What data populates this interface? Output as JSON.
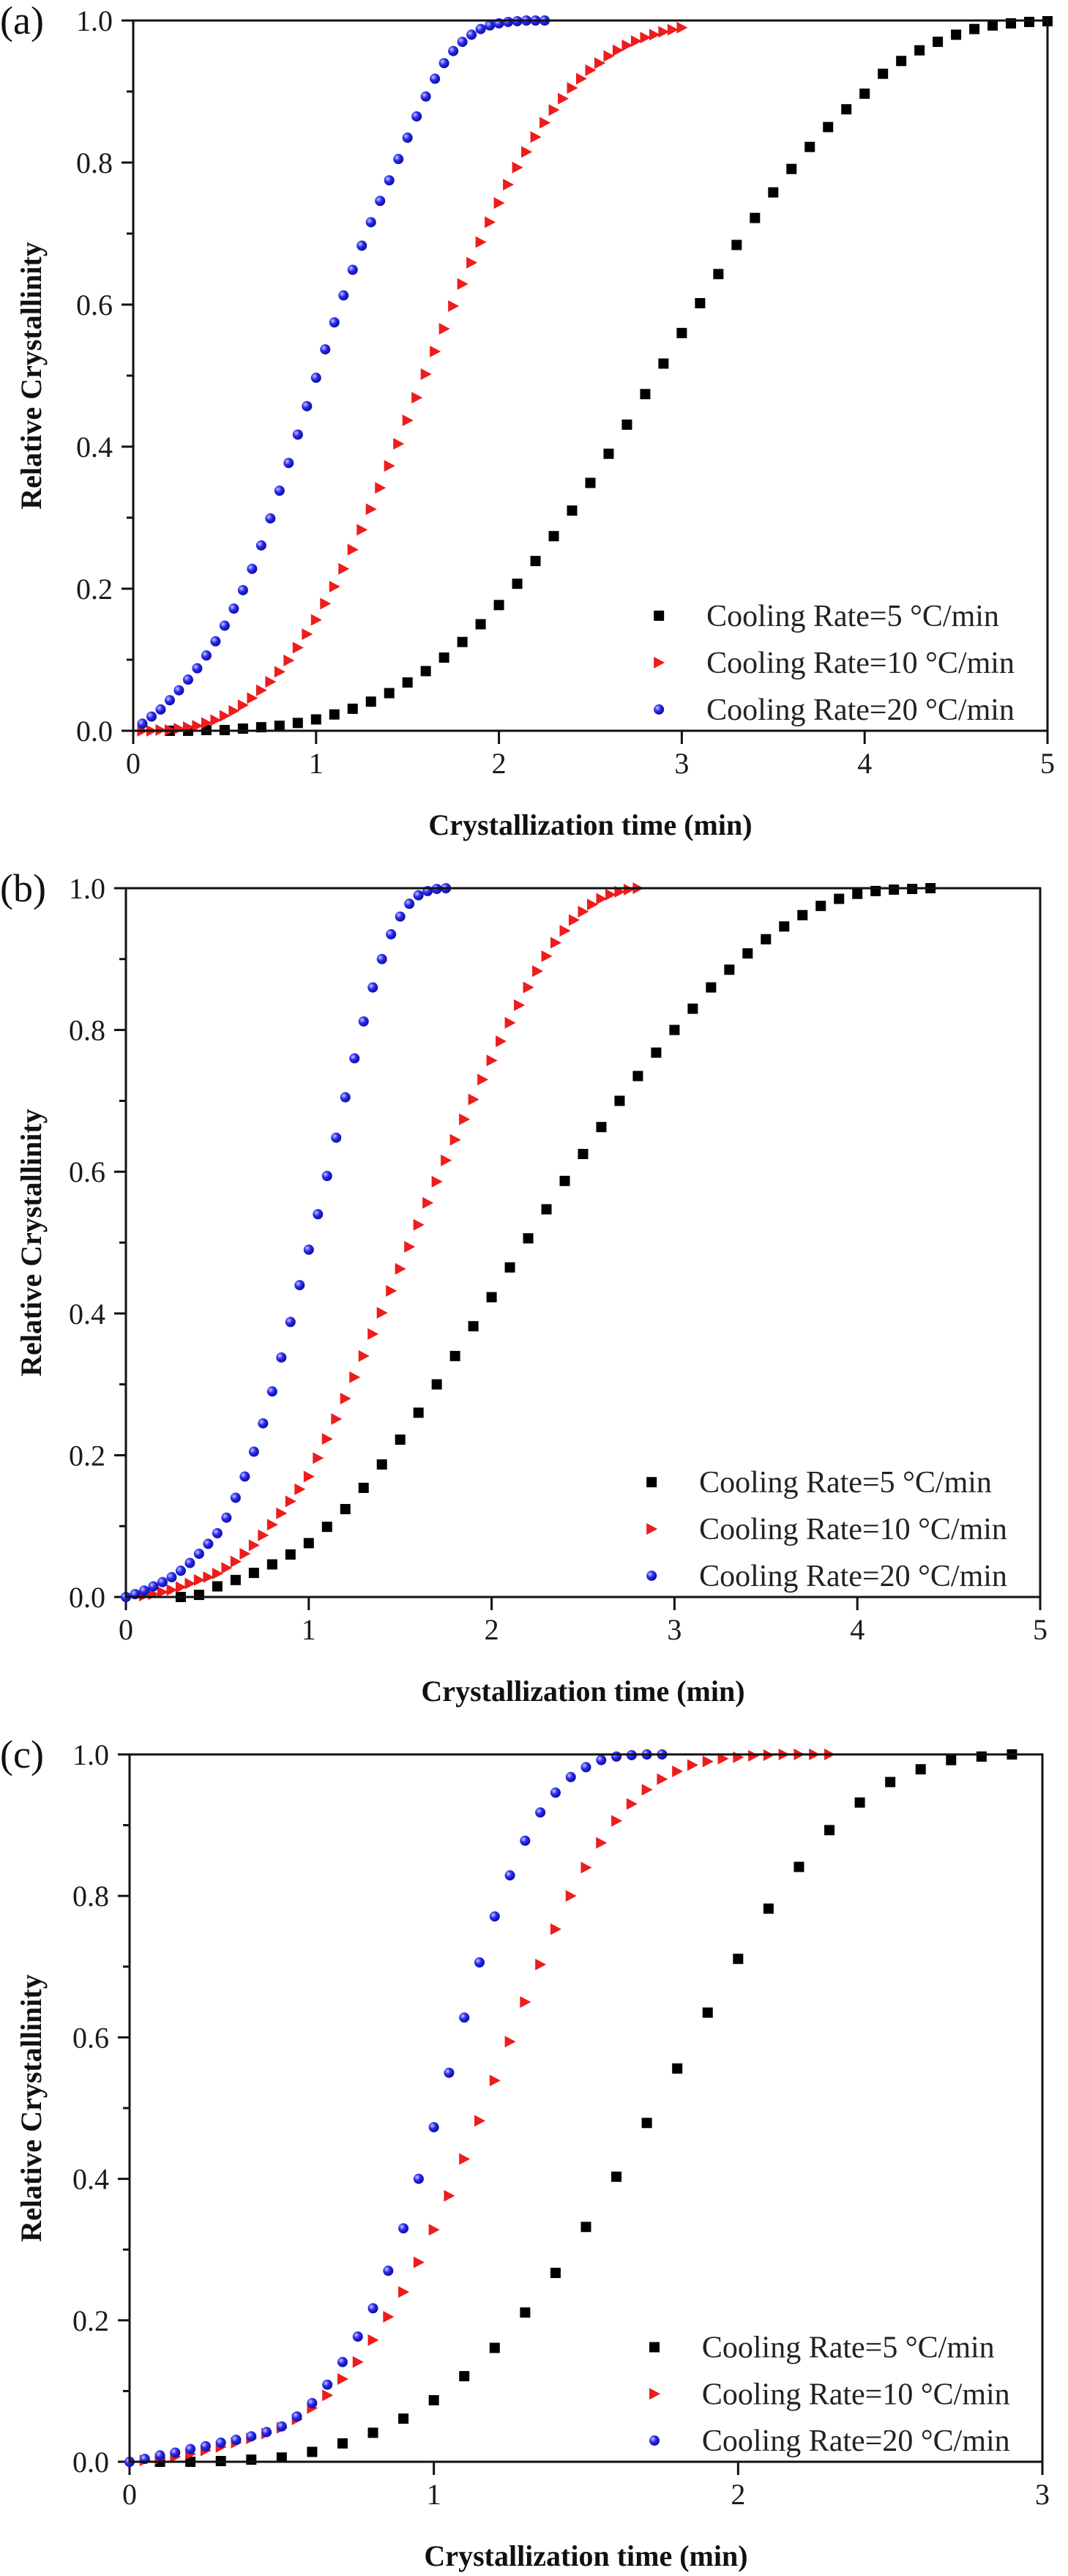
{
  "chart_data": [
    {
      "panel_label": "(a)",
      "type": "scatter",
      "xlabel": "Crystallization time (min)",
      "ylabel": "Relative Crystallinity",
      "xlim": [
        0,
        5
      ],
      "ylim": [
        0,
        1
      ],
      "xticks": [
        "0",
        "1",
        "2",
        "3",
        "4",
        "5"
      ],
      "yticks": [
        "0.0",
        "0.2",
        "0.4",
        "0.6",
        "0.8",
        "1.0"
      ],
      "grid": false,
      "legend_position": "bottom-right",
      "series": [
        {
          "name": "Cooling Rate=5 °C/min",
          "marker": "square",
          "color": "#000000",
          "x": [
            0.2,
            0.3,
            0.4,
            0.5,
            0.6,
            0.7,
            0.8,
            0.9,
            1.0,
            1.1,
            1.2,
            1.3,
            1.4,
            1.5,
            1.6,
            1.7,
            1.8,
            1.9,
            2.0,
            2.1,
            2.2,
            2.3,
            2.4,
            2.5,
            2.6,
            2.7,
            2.8,
            2.9,
            3.0,
            3.1,
            3.2,
            3.3,
            3.4,
            3.5,
            3.6,
            3.7,
            3.8,
            3.9,
            4.0,
            4.1,
            4.2,
            4.3,
            4.4,
            4.5,
            4.6,
            4.7,
            4.8,
            4.9,
            5.0
          ],
          "y": [
            0,
            0,
            0.001,
            0.001,
            0.003,
            0.005,
            0.007,
            0.011,
            0.016,
            0.023,
            0.031,
            0.041,
            0.053,
            0.068,
            0.084,
            0.103,
            0.125,
            0.15,
            0.177,
            0.207,
            0.239,
            0.274,
            0.31,
            0.349,
            0.39,
            0.431,
            0.474,
            0.517,
            0.56,
            0.602,
            0.643,
            0.684,
            0.722,
            0.758,
            0.791,
            0.822,
            0.85,
            0.875,
            0.897,
            0.925,
            0.943,
            0.958,
            0.97,
            0.98,
            0.988,
            0.993,
            0.996,
            0.998,
            0.999
          ]
        },
        {
          "name": "Cooling Rate=10 °C/min",
          "marker": "triangle-right",
          "color": "#ee1c1c",
          "x": [
            0.05,
            0.1,
            0.15,
            0.2,
            0.25,
            0.3,
            0.35,
            0.4,
            0.45,
            0.5,
            0.55,
            0.6,
            0.65,
            0.7,
            0.75,
            0.8,
            0.85,
            0.9,
            0.95,
            1.0,
            1.05,
            1.1,
            1.15,
            1.2,
            1.25,
            1.3,
            1.35,
            1.4,
            1.45,
            1.5,
            1.55,
            1.6,
            1.65,
            1.7,
            1.75,
            1.8,
            1.85,
            1.9,
            1.95,
            2.0,
            2.05,
            2.1,
            2.15,
            2.2,
            2.25,
            2.3,
            2.35,
            2.4,
            2.45,
            2.5,
            2.55,
            2.6,
            2.65,
            2.7,
            2.75,
            2.8,
            2.85,
            2.9,
            2.95,
            3.0
          ],
          "y": [
            0,
            0,
            0.001,
            0.001,
            0.003,
            0.005,
            0.007,
            0.011,
            0.015,
            0.021,
            0.028,
            0.036,
            0.046,
            0.057,
            0.069,
            0.083,
            0.099,
            0.117,
            0.136,
            0.156,
            0.179,
            0.203,
            0.228,
            0.255,
            0.283,
            0.312,
            0.342,
            0.373,
            0.404,
            0.437,
            0.469,
            0.502,
            0.534,
            0.566,
            0.598,
            0.629,
            0.659,
            0.688,
            0.716,
            0.743,
            0.769,
            0.793,
            0.815,
            0.836,
            0.856,
            0.874,
            0.89,
            0.905,
            0.918,
            0.93,
            0.94,
            0.95,
            0.958,
            0.965,
            0.971,
            0.976,
            0.98,
            0.984,
            0.987,
            0.99
          ]
        },
        {
          "name": "Cooling Rate=20 °C/min",
          "marker": "circle",
          "color": "#1a1aee",
          "x": [
            0.05,
            0.1,
            0.15,
            0.2,
            0.25,
            0.3,
            0.35,
            0.4,
            0.45,
            0.5,
            0.55,
            0.6,
            0.65,
            0.7,
            0.75,
            0.8,
            0.85,
            0.9,
            0.95,
            1.0,
            1.05,
            1.1,
            1.15,
            1.2,
            1.25,
            1.3,
            1.35,
            1.4,
            1.45,
            1.5,
            1.55,
            1.6,
            1.65,
            1.7,
            1.75,
            1.8,
            1.85,
            1.9,
            1.95,
            2.0,
            2.05,
            2.1,
            2.15,
            2.2,
            2.25
          ],
          "y": [
            0.01,
            0.02,
            0.03,
            0.043,
            0.057,
            0.072,
            0.088,
            0.106,
            0.126,
            0.148,
            0.172,
            0.198,
            0.228,
            0.261,
            0.299,
            0.338,
            0.377,
            0.417,
            0.457,
            0.497,
            0.537,
            0.575,
            0.613,
            0.649,
            0.683,
            0.716,
            0.746,
            0.775,
            0.805,
            0.835,
            0.865,
            0.893,
            0.918,
            0.94,
            0.957,
            0.97,
            0.98,
            0.988,
            0.993,
            0.996,
            0.998,
            0.999,
            1.0,
            1.0,
            1.0
          ]
        }
      ]
    },
    {
      "panel_label": "(b)",
      "type": "scatter",
      "xlabel": "Crystallization time (min)",
      "ylabel": "Relative Crystallinity",
      "xlim": [
        0,
        5
      ],
      "ylim": [
        0,
        1
      ],
      "xticks": [
        "0",
        "1",
        "2",
        "3",
        "4",
        "5"
      ],
      "yticks": [
        "0.0",
        "0.2",
        "0.4",
        "0.6",
        "0.8",
        "1.0"
      ],
      "grid": false,
      "legend_position": "bottom-right",
      "series": [
        {
          "name": "Cooling Rate=5 °C/min",
          "marker": "square",
          "color": "#000000",
          "x": [
            0.3,
            0.4,
            0.5,
            0.6,
            0.7,
            0.8,
            0.9,
            1.0,
            1.1,
            1.2,
            1.3,
            1.4,
            1.5,
            1.6,
            1.7,
            1.8,
            1.9,
            2.0,
            2.1,
            2.2,
            2.3,
            2.4,
            2.5,
            2.6,
            2.7,
            2.8,
            2.9,
            3.0,
            3.1,
            3.2,
            3.3,
            3.4,
            3.5,
            3.6,
            3.7,
            3.8,
            3.9,
            4.0,
            4.1,
            4.2,
            4.3,
            4.4
          ],
          "y": [
            0,
            0.003,
            0.015,
            0.024,
            0.034,
            0.046,
            0.06,
            0.076,
            0.099,
            0.124,
            0.154,
            0.187,
            0.222,
            0.26,
            0.3,
            0.34,
            0.382,
            0.423,
            0.465,
            0.506,
            0.547,
            0.587,
            0.625,
            0.663,
            0.7,
            0.735,
            0.768,
            0.8,
            0.83,
            0.86,
            0.885,
            0.908,
            0.928,
            0.946,
            0.962,
            0.975,
            0.985,
            0.992,
            0.996,
            0.998,
            0.999,
            1.0
          ]
        },
        {
          "name": "Cooling Rate=10 °C/min",
          "marker": "triangle-right",
          "color": "#ee1c1c",
          "x": [
            0.1,
            0.15,
            0.2,
            0.25,
            0.3,
            0.35,
            0.4,
            0.45,
            0.5,
            0.55,
            0.6,
            0.65,
            0.7,
            0.75,
            0.8,
            0.85,
            0.9,
            0.95,
            1.0,
            1.05,
            1.1,
            1.15,
            1.2,
            1.25,
            1.3,
            1.35,
            1.4,
            1.45,
            1.5,
            1.55,
            1.6,
            1.65,
            1.7,
            1.75,
            1.8,
            1.85,
            1.9,
            1.95,
            2.0,
            2.05,
            2.1,
            2.15,
            2.2,
            2.25,
            2.3,
            2.35,
            2.4,
            2.45,
            2.5,
            2.55,
            2.6,
            2.65,
            2.7,
            2.75,
            2.8
          ],
          "y": [
            0.002,
            0.004,
            0.007,
            0.01,
            0.014,
            0.019,
            0.024,
            0.028,
            0.033,
            0.041,
            0.05,
            0.061,
            0.073,
            0.087,
            0.102,
            0.118,
            0.135,
            0.152,
            0.17,
            0.196,
            0.223,
            0.251,
            0.28,
            0.31,
            0.34,
            0.371,
            0.401,
            0.432,
            0.463,
            0.494,
            0.525,
            0.556,
            0.586,
            0.616,
            0.645,
            0.674,
            0.702,
            0.73,
            0.757,
            0.784,
            0.81,
            0.835,
            0.86,
            0.883,
            0.904,
            0.923,
            0.94,
            0.955,
            0.967,
            0.977,
            0.985,
            0.991,
            0.995,
            0.998,
            1.0
          ]
        },
        {
          "name": "Cooling Rate=20 °C/min",
          "marker": "circle",
          "color": "#1a1aee",
          "x": [
            0,
            0.05,
            0.1,
            0.15,
            0.2,
            0.25,
            0.3,
            0.35,
            0.4,
            0.45,
            0.5,
            0.55,
            0.6,
            0.65,
            0.7,
            0.75,
            0.8,
            0.85,
            0.9,
            0.95,
            1.0,
            1.05,
            1.1,
            1.15,
            1.2,
            1.25,
            1.3,
            1.35,
            1.4,
            1.45,
            1.5,
            1.55,
            1.6,
            1.65,
            1.7,
            1.75
          ],
          "y": [
            0,
            0.004,
            0.009,
            0.015,
            0.021,
            0.028,
            0.037,
            0.048,
            0.061,
            0.075,
            0.09,
            0.112,
            0.14,
            0.17,
            0.205,
            0.245,
            0.29,
            0.338,
            0.388,
            0.44,
            0.49,
            0.54,
            0.594,
            0.648,
            0.705,
            0.76,
            0.812,
            0.86,
            0.9,
            0.935,
            0.96,
            0.978,
            0.99,
            0.996,
            0.999,
            1.0
          ]
        }
      ]
    },
    {
      "panel_label": "(c)",
      "type": "scatter",
      "xlabel": "Crystallization time (min)",
      "ylabel": "Relative Crystallinity",
      "xlim": [
        0,
        3
      ],
      "ylim": [
        0,
        1
      ],
      "xticks": [
        "0",
        "1",
        "2",
        "3"
      ],
      "yticks": [
        "0.0",
        "0.2",
        "0.4",
        "0.6",
        "0.8",
        "1.0"
      ],
      "grid": false,
      "legend_position": "bottom-right",
      "series": [
        {
          "name": "Cooling Rate=5 °C/min",
          "marker": "square",
          "color": "#000000",
          "x": [
            0.1,
            0.2,
            0.3,
            0.4,
            0.5,
            0.6,
            0.7,
            0.8,
            0.9,
            1.0,
            1.1,
            1.2,
            1.3,
            1.4,
            1.5,
            1.6,
            1.7,
            1.8,
            1.9,
            2.0,
            2.1,
            2.2,
            2.3,
            2.4,
            2.5,
            2.6,
            2.7,
            2.8,
            2.9
          ],
          "y": [
            0,
            0,
            0.001,
            0.003,
            0.006,
            0.014,
            0.026,
            0.041,
            0.061,
            0.087,
            0.121,
            0.161,
            0.211,
            0.267,
            0.332,
            0.403,
            0.479,
            0.556,
            0.635,
            0.711,
            0.782,
            0.841,
            0.893,
            0.932,
            0.961,
            0.979,
            0.992,
            0.997,
            1.0
          ]
        },
        {
          "name": "Cooling Rate=10 °C/min",
          "marker": "triangle-right",
          "color": "#ee1c1c",
          "x": [
            0.05,
            0.1,
            0.15,
            0.2,
            0.25,
            0.3,
            0.35,
            0.4,
            0.45,
            0.5,
            0.55,
            0.6,
            0.65,
            0.7,
            0.75,
            0.8,
            0.85,
            0.9,
            0.95,
            1.0,
            1.05,
            1.1,
            1.15,
            1.2,
            1.25,
            1.3,
            1.35,
            1.4,
            1.45,
            1.5,
            1.55,
            1.6,
            1.65,
            1.7,
            1.75,
            1.8,
            1.85,
            1.9,
            1.95,
            2.0,
            2.05,
            2.1,
            2.15,
            2.2,
            2.25,
            2.3
          ],
          "y": [
            0.002,
            0.004,
            0.007,
            0.011,
            0.016,
            0.021,
            0.027,
            0.033,
            0.04,
            0.048,
            0.06,
            0.076,
            0.094,
            0.117,
            0.141,
            0.172,
            0.205,
            0.24,
            0.282,
            0.328,
            0.376,
            0.428,
            0.482,
            0.539,
            0.594,
            0.65,
            0.703,
            0.753,
            0.8,
            0.84,
            0.875,
            0.906,
            0.93,
            0.95,
            0.965,
            0.976,
            0.985,
            0.99,
            0.994,
            0.996,
            0.998,
            0.999,
            1.0,
            1.0,
            1.0,
            1.0
          ]
        },
        {
          "name": "Cooling Rate=20 °C/min",
          "marker": "circle",
          "color": "#1a1aee",
          "x": [
            0,
            0.05,
            0.1,
            0.15,
            0.2,
            0.25,
            0.3,
            0.35,
            0.4,
            0.45,
            0.5,
            0.55,
            0.6,
            0.65,
            0.7,
            0.75,
            0.8,
            0.85,
            0.9,
            0.95,
            1.0,
            1.05,
            1.1,
            1.15,
            1.2,
            1.25,
            1.3,
            1.35,
            1.4,
            1.45,
            1.5,
            1.55,
            1.6,
            1.65,
            1.7,
            1.75
          ],
          "y": [
            0,
            0.004,
            0.009,
            0.013,
            0.018,
            0.022,
            0.027,
            0.031,
            0.036,
            0.042,
            0.05,
            0.064,
            0.083,
            0.109,
            0.141,
            0.177,
            0.217,
            0.27,
            0.33,
            0.4,
            0.473,
            0.55,
            0.628,
            0.706,
            0.771,
            0.829,
            0.878,
            0.918,
            0.946,
            0.968,
            0.982,
            0.992,
            0.997,
            0.999,
            1.0,
            1.0
          ]
        }
      ]
    }
  ]
}
